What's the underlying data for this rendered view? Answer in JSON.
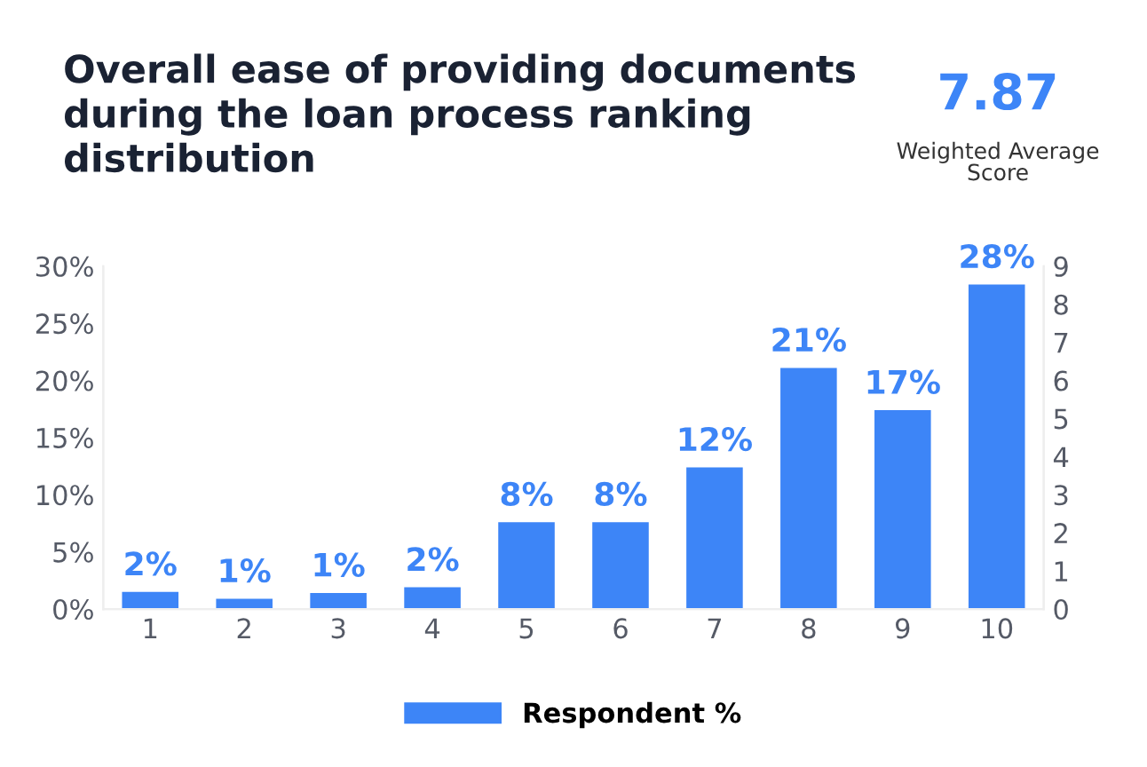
{
  "chart_data": {
    "type": "bar",
    "title": "Overall ease of providing documents\nduring the loan process ranking\ndistribution",
    "annotations": [
      "7.87",
      "Weighted Average\nScore"
    ],
    "categories": [
      "1",
      "2",
      "3",
      "4",
      "5",
      "6",
      "7",
      "8",
      "9",
      "10"
    ],
    "series": [
      {
        "name": "Respondent %",
        "color": "#3d85f7",
        "values": [
          1.5,
          0.9,
          1.4,
          1.9,
          7.6,
          7.6,
          12.4,
          21.1,
          17.4,
          28.4
        ],
        "value_labels": [
          "2%",
          "1%",
          "1%",
          "2%",
          "8%",
          "8%",
          "12%",
          "21%",
          "17%",
          "28%"
        ]
      }
    ],
    "ylim": [
      0,
      30
    ],
    "yticks": [
      {
        "value": 0,
        "label": "0%"
      },
      {
        "value": 5,
        "label": "5%"
      },
      {
        "value": 10,
        "label": "10%"
      },
      {
        "value": 15,
        "label": "15%"
      },
      {
        "value": 20,
        "label": "20%"
      },
      {
        "value": 25,
        "label": "25%"
      },
      {
        "value": 30,
        "label": "30%"
      }
    ],
    "y2lim": [
      0,
      9
    ],
    "y2ticks": [
      0,
      1,
      2,
      3,
      4,
      5,
      6,
      7,
      8,
      9
    ],
    "grid": false,
    "legend": "bottom"
  }
}
